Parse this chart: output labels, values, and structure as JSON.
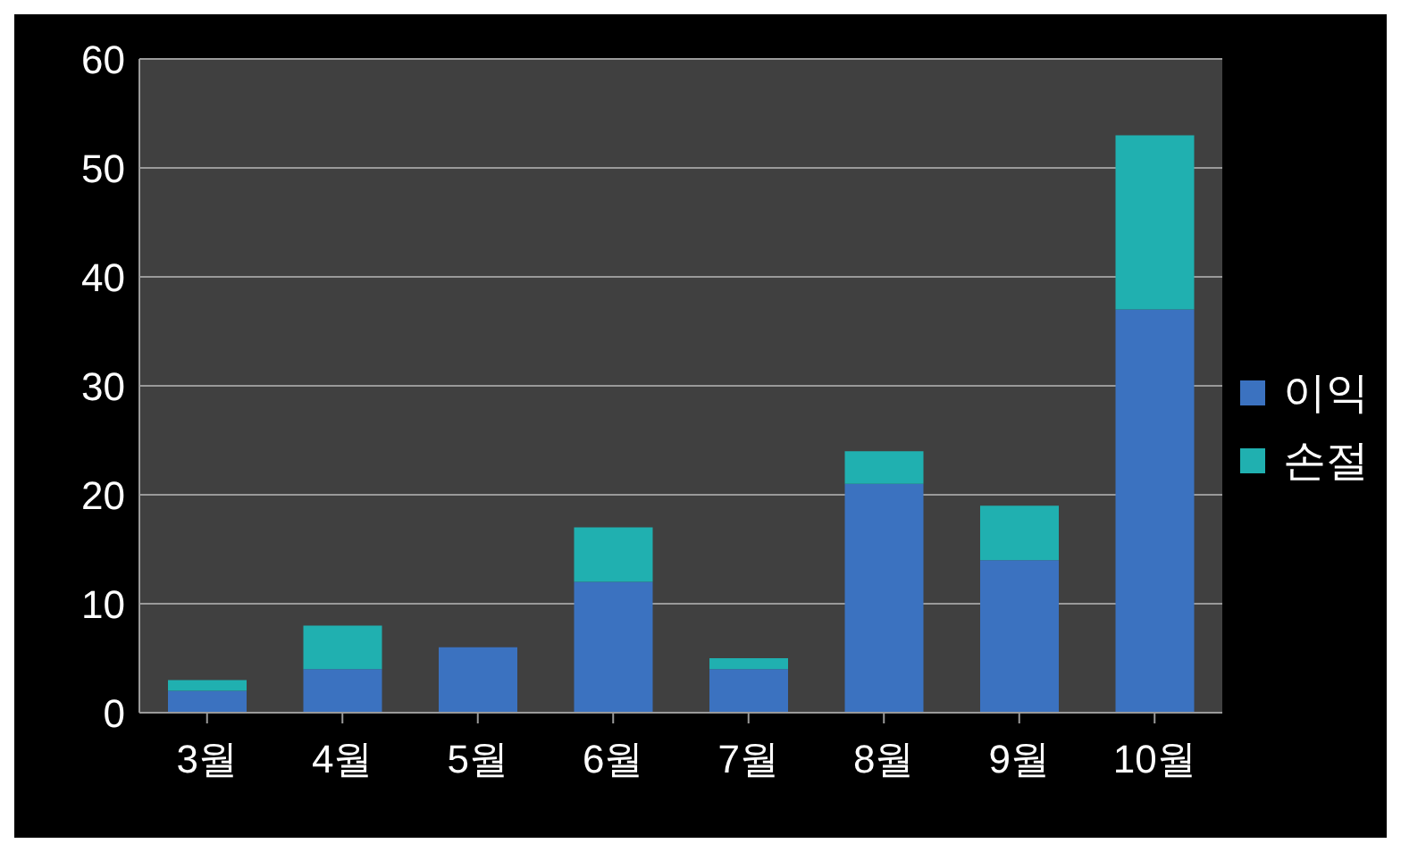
{
  "chart_data": {
    "type": "bar",
    "stacked": true,
    "categories": [
      "3월",
      "4월",
      "5월",
      "6월",
      "7월",
      "8월",
      "9월",
      "10월"
    ],
    "series": [
      {
        "name": "이익",
        "color": "#3b72c0",
        "values": [
          2,
          4,
          6,
          12,
          4,
          21,
          14,
          37
        ]
      },
      {
        "name": "손절",
        "color": "#20b0b0",
        "values": [
          1,
          4,
          0,
          5,
          1,
          3,
          5,
          16
        ]
      }
    ],
    "ylim": [
      0,
      60
    ],
    "yticks": [
      0,
      10,
      20,
      30,
      40,
      50,
      60
    ],
    "grid": "y",
    "legend": "right"
  }
}
